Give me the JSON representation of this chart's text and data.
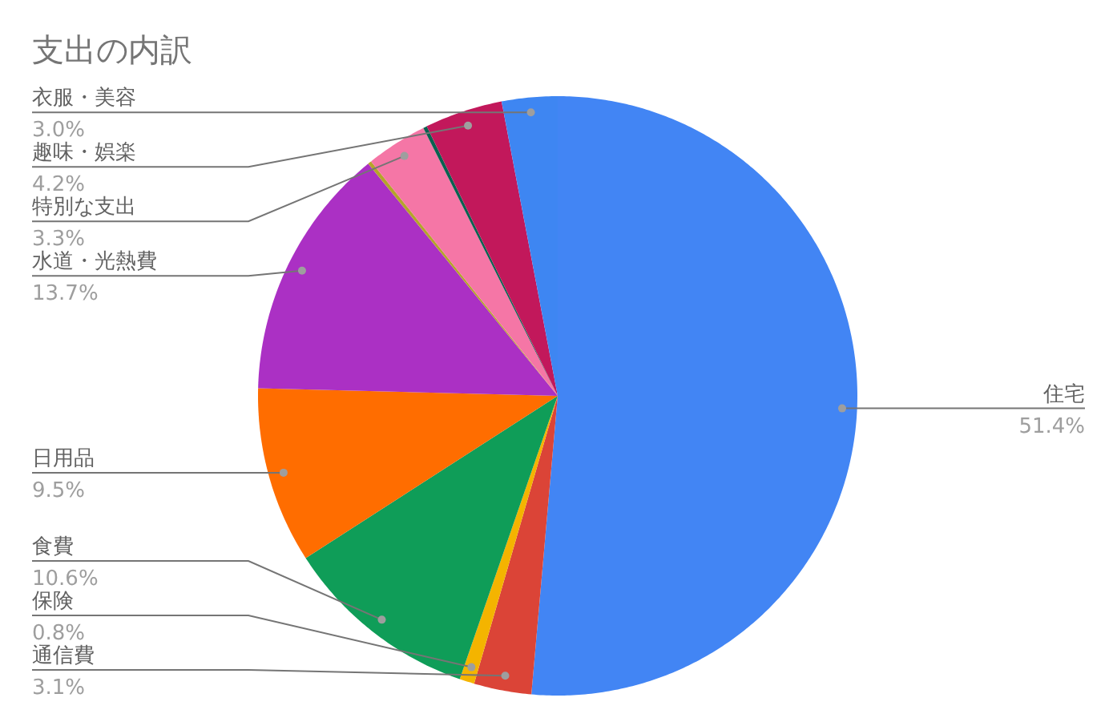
{
  "chart_data": {
    "type": "pie",
    "title": "支出の内訳",
    "categories": [
      "住宅",
      "通信費",
      "保険",
      "食費",
      "日用品",
      "水道・光熱費",
      null,
      "特別な支出",
      null,
      "趣味・娯楽",
      "衣服・美容"
    ],
    "values": [
      51.4,
      3.1,
      0.8,
      10.6,
      9.5,
      13.7,
      0.2,
      3.3,
      0.2,
      4.2,
      3.0
    ],
    "colors": [
      "#4285f4",
      "#db4437",
      "#f4b400",
      "#0f9d58",
      "#ff6d00",
      "#ab30c4",
      "#b5a42a",
      "#f576a6",
      "#0b6150",
      "#c2185b",
      "#3e86f2"
    ],
    "value_labels": [
      "51.4%",
      "3.1%",
      "0.8%",
      "10.6%",
      "9.5%",
      "13.7%",
      null,
      "3.3%",
      null,
      "4.2%",
      "3.0%"
    ]
  }
}
